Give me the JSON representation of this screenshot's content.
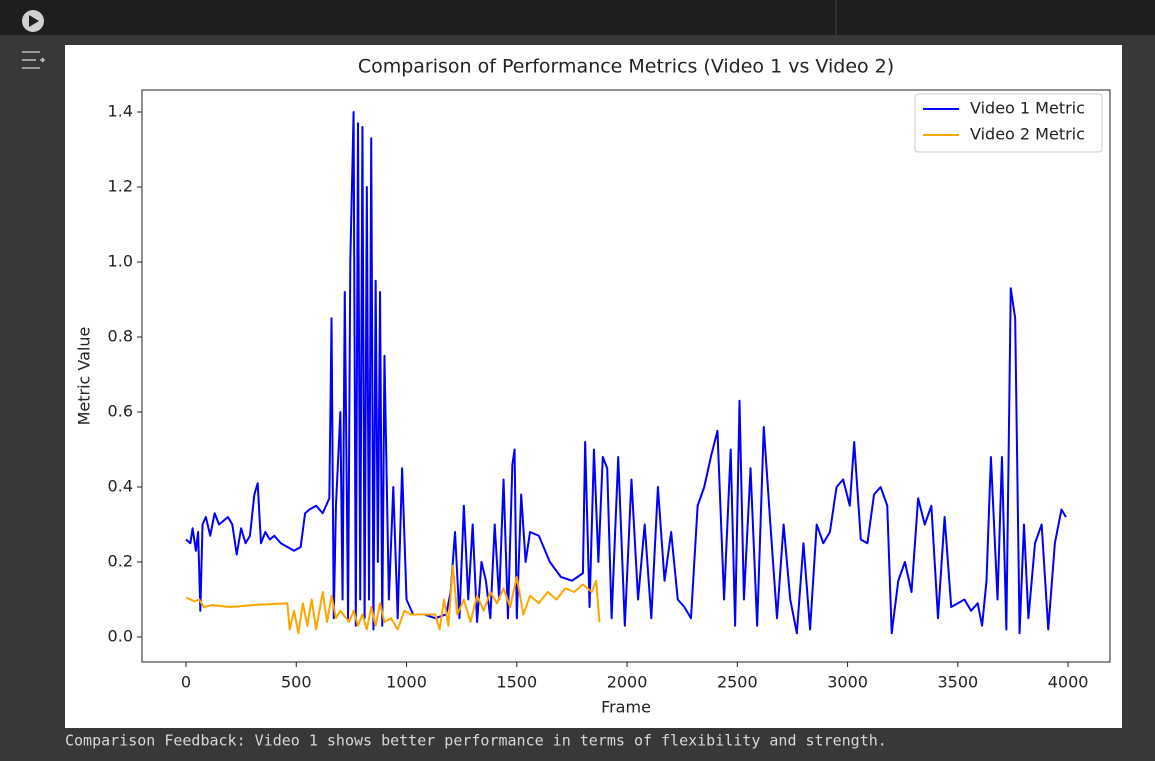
{
  "chart_data": {
    "type": "line",
    "title": "Comparison of Performance Metrics (Video 1 vs Video 2)",
    "x_label": "Frame",
    "y_label": "Metric Value",
    "xlim": [
      -199.5,
      4190
    ],
    "ylim": [
      -0.0667,
      1.4587
    ],
    "xticks": [
      0,
      500,
      1000,
      1500,
      2000,
      2500,
      3000,
      3500,
      4000
    ],
    "yticks": [
      {
        "value": 0,
        "label": "0.0"
      },
      0.2,
      0.4,
      0.6,
      0.8,
      {
        "value": 1,
        "label": "1.0"
      },
      1.2,
      1.4
    ],
    "legend": "upper right",
    "series": [
      {
        "name": "Video 1 Metric",
        "color": "#0000ff",
        "x": [
          0,
          20,
          30,
          45,
          55,
          65,
          75,
          90,
          110,
          130,
          150,
          170,
          190,
          210,
          230,
          250,
          270,
          290,
          310,
          325,
          340,
          360,
          380,
          400,
          430,
          460,
          490,
          520,
          540,
          560,
          590,
          620,
          650,
          660,
          670,
          680,
          700,
          710,
          720,
          735,
          745,
          760,
          770,
          780,
          790,
          800,
          810,
          820,
          830,
          840,
          850,
          860,
          870,
          880,
          890,
          900,
          920,
          940,
          960,
          980,
          1000,
          1030,
          1080,
          1130,
          1180,
          1200,
          1220,
          1240,
          1260,
          1280,
          1300,
          1320,
          1340,
          1360,
          1380,
          1400,
          1420,
          1440,
          1460,
          1480,
          1490,
          1500,
          1520,
          1540,
          1560,
          1600,
          1650,
          1700,
          1750,
          1800,
          1810,
          1830,
          1850,
          1870,
          1890,
          1910,
          1930,
          1960,
          1990,
          2020,
          2050,
          2080,
          2110,
          2140,
          2170,
          2200,
          2230,
          2260,
          2290,
          2320,
          2350,
          2380,
          2410,
          2440,
          2470,
          2490,
          2510,
          2530,
          2560,
          2590,
          2620,
          2650,
          2680,
          2710,
          2740,
          2770,
          2800,
          2830,
          2860,
          2890,
          2920,
          2950,
          2980,
          3010,
          3030,
          3060,
          3090,
          3120,
          3150,
          3180,
          3200,
          3230,
          3260,
          3290,
          3320,
          3350,
          3380,
          3410,
          3440,
          3470,
          3500,
          3530,
          3560,
          3590,
          3610,
          3630,
          3650,
          3680,
          3700,
          3720,
          3740,
          3760,
          3780,
          3800,
          3820,
          3850,
          3880,
          3910,
          3940,
          3970,
          3990
        ],
        "values": [
          0.26,
          0.25,
          0.29,
          0.23,
          0.28,
          0.07,
          0.3,
          0.32,
          0.27,
          0.33,
          0.3,
          0.31,
          0.32,
          0.3,
          0.22,
          0.29,
          0.25,
          0.27,
          0.38,
          0.41,
          0.25,
          0.28,
          0.26,
          0.27,
          0.25,
          0.24,
          0.23,
          0.24,
          0.33,
          0.34,
          0.35,
          0.33,
          0.37,
          0.85,
          0.05,
          0.35,
          0.6,
          0.1,
          0.92,
          0.05,
          1.0,
          1.4,
          0.03,
          1.37,
          0.1,
          1.36,
          0.05,
          1.2,
          0.1,
          1.33,
          0.02,
          0.95,
          0.2,
          0.92,
          0.03,
          0.75,
          0.1,
          0.4,
          0.05,
          0.45,
          0.1,
          0.06,
          0.06,
          0.05,
          0.06,
          0.12,
          0.28,
          0.05,
          0.35,
          0.1,
          0.3,
          0.04,
          0.2,
          0.15,
          0.05,
          0.3,
          0.1,
          0.42,
          0.05,
          0.46,
          0.5,
          0.05,
          0.38,
          0.2,
          0.28,
          0.27,
          0.2,
          0.16,
          0.15,
          0.17,
          0.52,
          0.08,
          0.5,
          0.2,
          0.48,
          0.45,
          0.05,
          0.48,
          0.03,
          0.42,
          0.1,
          0.3,
          0.05,
          0.4,
          0.15,
          0.28,
          0.1,
          0.08,
          0.05,
          0.35,
          0.4,
          0.48,
          0.55,
          0.1,
          0.5,
          0.03,
          0.63,
          0.1,
          0.45,
          0.03,
          0.56,
          0.3,
          0.05,
          0.3,
          0.1,
          0.01,
          0.25,
          0.02,
          0.3,
          0.25,
          0.28,
          0.4,
          0.42,
          0.35,
          0.52,
          0.26,
          0.25,
          0.38,
          0.4,
          0.35,
          0.01,
          0.15,
          0.2,
          0.12,
          0.37,
          0.3,
          0.35,
          0.05,
          0.32,
          0.08,
          0.09,
          0.1,
          0.07,
          0.09,
          0.03,
          0.15,
          0.48,
          0.1,
          0.48,
          0.02,
          0.93,
          0.85,
          0.01,
          0.3,
          0.05,
          0.25,
          0.3,
          0.02,
          0.25,
          0.34,
          0.32
        ]
      },
      {
        "name": "Video 2 Metric",
        "color": "#ffa500",
        "x": [
          0,
          40,
          60,
          80,
          120,
          200,
          300,
          400,
          460,
          470,
          490,
          510,
          530,
          550,
          570,
          590,
          620,
          640,
          660,
          680,
          700,
          740,
          760,
          780,
          800,
          820,
          840,
          860,
          880,
          900,
          930,
          960,
          990,
          1020,
          1080,
          1130,
          1150,
          1170,
          1190,
          1210,
          1230,
          1260,
          1290,
          1320,
          1350,
          1380,
          1410,
          1440,
          1470,
          1500,
          1530,
          1560,
          1600,
          1640,
          1680,
          1720,
          1760,
          1800,
          1840,
          1860,
          1875
        ],
        "values": [
          0.105,
          0.095,
          0.1,
          0.08,
          0.085,
          0.08,
          0.085,
          0.088,
          0.09,
          0.02,
          0.07,
          0.01,
          0.09,
          0.03,
          0.1,
          0.02,
          0.12,
          0.04,
          0.11,
          0.05,
          0.07,
          0.04,
          0.07,
          0.03,
          0.06,
          0.02,
          0.08,
          0.03,
          0.09,
          0.04,
          0.05,
          0.02,
          0.07,
          0.06,
          0.06,
          0.06,
          0.02,
          0.1,
          0.03,
          0.19,
          0.06,
          0.1,
          0.04,
          0.11,
          0.07,
          0.12,
          0.09,
          0.13,
          0.08,
          0.16,
          0.06,
          0.11,
          0.09,
          0.12,
          0.1,
          0.13,
          0.12,
          0.14,
          0.12,
          0.15,
          0.04
        ]
      }
    ]
  },
  "output": "Comparison Feedback: Video 1 shows better performance in terms of flexibility and strength."
}
